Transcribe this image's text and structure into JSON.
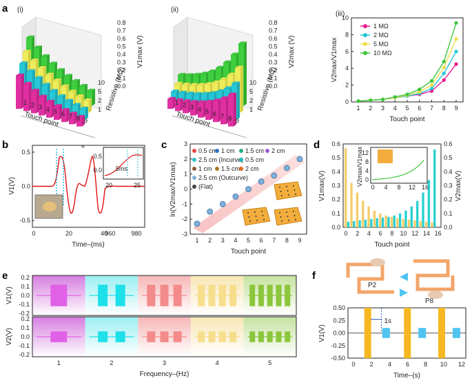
{
  "panels": {
    "a": {
      "label": "a",
      "i": {
        "sub": "(i)",
        "axis": "V1max (V)",
        "ticks": [
          "0.8",
          "0.7",
          "0.6",
          "0.5",
          "0.4",
          "0.3",
          "0.2",
          "0.1",
          "0.0"
        ],
        "xlab": "Touch point",
        "ylab": "Resistive (MΩ)",
        "rticks": [
          "10",
          "5",
          "2",
          "1"
        ],
        "xticks": [
          "1",
          "2",
          "3",
          "4",
          "5",
          "6",
          "7",
          "8",
          "9"
        ]
      },
      "ii": {
        "sub": "(ii)",
        "axis": "V2max (V)",
        "ticks": [
          "0.8",
          "0.7",
          "0.6",
          "0.5",
          "0.4",
          "0.3",
          "0.2",
          "0.1",
          "0.0"
        ],
        "xlab": "Touch point",
        "ylab": "Resistive (MΩ)",
        "rticks": [
          "10",
          "5",
          "2",
          "1"
        ],
        "xticks": [
          "1",
          "2",
          "3",
          "4",
          "5",
          "6",
          "7",
          "8",
          "9"
        ]
      },
      "iii": {
        "sub": "(iii)"
      }
    },
    "b": {
      "label": "b",
      "inset_label": "5ms",
      "break_ticks": [
        "960",
        "980"
      ]
    },
    "c": {
      "label": "c",
      "legend": [
        "0.5 cm",
        "1 cm",
        "1.5 cm",
        "2 cm",
        "2.5 cm (Incurve)",
        "0.5 cm",
        "1 cm",
        "1.5 cm",
        "2 cm",
        "2.5 cm (Outcurve)",
        "(Flat)"
      ]
    },
    "d": {
      "label": "d",
      "inset_xlabel": "",
      "inset_ylabel": "V2max/V1max"
    },
    "e": {
      "label": "e",
      "top_ylabel": "V1(V)",
      "bot_ylabel": "V2(V)",
      "xlabel": "Frequency–(Hz)"
    },
    "f": {
      "label": "f",
      "p2": "P2",
      "p8": "P8",
      "ann": "1s"
    }
  },
  "chart_data": [
    {
      "id": "a-iii",
      "type": "line",
      "xlabel": "Touch point",
      "ylabel": "V2max/V1max",
      "x": [
        1,
        2,
        3,
        4,
        5,
        6,
        7,
        8,
        9
      ],
      "ylim": [
        0,
        10
      ],
      "xticks": [
        "1",
        "2",
        "3",
        "4",
        "5",
        "6",
        "7",
        "8",
        "9"
      ],
      "yticks": [
        "0",
        "2",
        "4",
        "6",
        "8",
        "10"
      ],
      "series": [
        {
          "name": "1 MΩ",
          "color": "#e5198b",
          "values": [
            0.1,
            0.2,
            0.3,
            0.5,
            0.7,
            0.9,
            1.3,
            2.6,
            4.5
          ]
        },
        {
          "name": "2 MΩ",
          "color": "#22c4d6",
          "values": [
            0.1,
            0.2,
            0.3,
            0.5,
            0.7,
            1.0,
            1.6,
            3.4,
            6.0
          ]
        },
        {
          "name": "5 MΩ",
          "color": "#f2dc4c",
          "values": [
            0.1,
            0.2,
            0.3,
            0.5,
            0.8,
            1.2,
            2.0,
            4.1,
            7.5
          ]
        },
        {
          "name": "10 MΩ",
          "color": "#3cc63c",
          "values": [
            0.1,
            0.2,
            0.3,
            0.6,
            0.9,
            1.5,
            2.5,
            4.8,
            9.4
          ]
        }
      ]
    },
    {
      "id": "b",
      "type": "line",
      "xlabel": "Time–(ms)",
      "ylabel": "V1(V)",
      "xticks": [
        "0",
        "20",
        "40"
      ],
      "yticks": [
        "0.5",
        "0.0",
        "-0.5"
      ],
      "ylim": [
        -0.5,
        0.5
      ],
      "inset_xticks": [
        "20",
        "25"
      ],
      "inset_yticks": [
        "0.5",
        "0.0"
      ]
    },
    {
      "id": "c",
      "type": "scatter",
      "xlabel": "Touch point",
      "ylabel": "ln(V2max/V1max)",
      "x": [
        1,
        2,
        3,
        4,
        5,
        6,
        7,
        8,
        9
      ],
      "values": [
        -2.3,
        -1.5,
        -1.0,
        -0.5,
        0.0,
        0.5,
        0.9,
        1.4,
        2.0
      ],
      "xticks": [
        "1",
        "2",
        "3",
        "4",
        "5",
        "6",
        "7",
        "8",
        "9"
      ],
      "yticks": [
        "3",
        "2",
        "1",
        "0",
        "-1",
        "-2",
        "-3"
      ],
      "ylim": [
        -3,
        3
      ]
    },
    {
      "id": "d",
      "type": "bar",
      "xlabel": "Touch point",
      "left_ylabel": "V1max(V)",
      "right_ylabel": "V2max(V)",
      "xticks": [
        "0",
        "2",
        "4",
        "6",
        "8",
        "10",
        "12",
        "14",
        "16"
      ],
      "left_yticks": [
        "0.0",
        "0.1",
        "0.2",
        "0.3",
        "0.4",
        "0.5",
        "0.6"
      ],
      "right_yticks": [
        "0.0",
        "0.1",
        "0.2",
        "0.3",
        "0.4",
        "0.5",
        "0.6"
      ],
      "ylim": [
        0,
        0.6
      ],
      "series": [
        {
          "name": "V1max",
          "color": "#f5cc6a",
          "values": [
            0.57,
            0.32,
            0.25,
            0.19,
            0.15,
            0.12,
            0.1,
            0.085,
            0.075,
            0.065,
            0.06,
            0.055,
            0.05,
            0.045,
            0.04,
            0.035
          ]
        },
        {
          "name": "V2max",
          "color": "#2ad0d0",
          "values": [
            0.04,
            0.045,
            0.05,
            0.055,
            0.06,
            0.065,
            0.07,
            0.075,
            0.085,
            0.1,
            0.12,
            0.15,
            0.19,
            0.25,
            0.34,
            0.56
          ]
        }
      ],
      "inset": {
        "xticks": [
          "0",
          "4",
          "8",
          "12",
          "16"
        ],
        "yticks": [
          "0",
          "4",
          "8",
          "12"
        ]
      }
    },
    {
      "id": "e",
      "type": "bar",
      "xlabel": "Frequency–(Hz)",
      "xticks": [
        "1",
        "2",
        "3",
        "4",
        "5"
      ],
      "top_yticks": [
        "0.2",
        "0.1",
        "0.0",
        "-0.1",
        "-0.2"
      ],
      "bot_yticks": [
        "0.2",
        "0.1",
        "0.0",
        "-0.1",
        "-0.2"
      ],
      "colors": [
        "#e061e6",
        "#1ee0e8",
        "#f38b8b",
        "#f6de8d",
        "#8cc63c"
      ]
    },
    {
      "id": "f",
      "type": "bar",
      "xlabel": "Time–(s)",
      "ylabel": "V1(V)",
      "xticks": [
        "0",
        "2",
        "4",
        "6",
        "8",
        "10",
        "12"
      ],
      "yticks": [
        "0.50",
        "0.25",
        "0.00",
        "-0.25",
        "-0.50"
      ],
      "ylim": [
        -0.5,
        0.5
      ],
      "series": [
        {
          "name": "P2",
          "color": "#f5b820"
        },
        {
          "name": "P8",
          "color": "#4fc4f0"
        }
      ]
    }
  ]
}
